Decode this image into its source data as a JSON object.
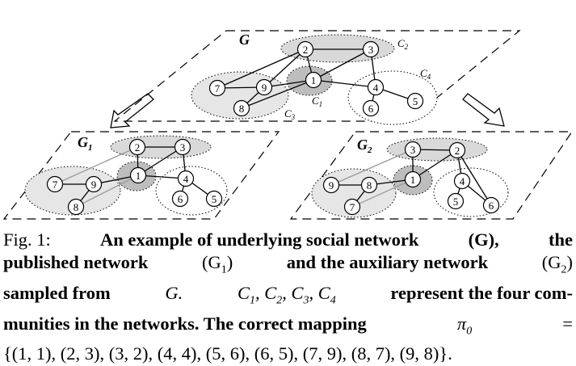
{
  "figure": {
    "graphs": {
      "main": {
        "label": "G",
        "sub": ""
      },
      "published": {
        "label": "G",
        "sub": "1"
      },
      "auxiliary": {
        "label": "G",
        "sub": "2"
      }
    },
    "communities": {
      "c1": {
        "label": "C",
        "sub": "1"
      },
      "c2": {
        "label": "C",
        "sub": "2"
      },
      "c3": {
        "label": "C",
        "sub": "3"
      },
      "c4": {
        "label": "C",
        "sub": "4"
      }
    },
    "node_labels": [
      "1",
      "2",
      "3",
      "4",
      "5",
      "6",
      "7",
      "8",
      "9"
    ],
    "edges_g": [
      [
        "2",
        "3"
      ],
      [
        "2",
        "1"
      ],
      [
        "3",
        "1"
      ],
      [
        "2",
        "7"
      ],
      [
        "7",
        "9"
      ],
      [
        "9",
        "8"
      ],
      [
        "9",
        "1"
      ],
      [
        "1",
        "4"
      ],
      [
        "4",
        "6"
      ],
      [
        "4",
        "5"
      ],
      [
        "3",
        "4"
      ],
      [
        "9",
        "2"
      ],
      [
        "8",
        "1"
      ]
    ],
    "edges_g1": [
      [
        "2",
        "3"
      ],
      [
        "2",
        "1"
      ],
      [
        "1",
        "3"
      ],
      [
        "7",
        "9"
      ],
      [
        "9",
        "8"
      ],
      [
        "9",
        "1"
      ],
      [
        "1",
        "4"
      ],
      [
        "4",
        "6"
      ],
      [
        "4",
        "5"
      ],
      [
        "3",
        "4"
      ],
      [
        "7",
        "2"
      ],
      [
        "8",
        "1"
      ]
    ],
    "edges_g2": [
      [
        "3",
        "2"
      ],
      [
        "3",
        "1"
      ],
      [
        "9",
        "8"
      ],
      [
        "8",
        "7"
      ],
      [
        "8",
        "1"
      ],
      [
        "1",
        "2"
      ],
      [
        "2",
        "4"
      ],
      [
        "4",
        "5"
      ],
      [
        "4",
        "6"
      ],
      [
        "2",
        "6"
      ],
      [
        "9",
        "3"
      ],
      [
        "7",
        "1"
      ]
    ]
  },
  "caption": {
    "line1": [
      "Fig. 1:",
      "An example of underlying social network",
      "(G),",
      "the"
    ],
    "line2": [
      "published network",
      "(G",
      "1",
      ")",
      "and the auxiliary network",
      "(G",
      "2",
      ")"
    ],
    "line3": [
      "sampled from",
      "G.",
      "C",
      "1",
      ", C",
      "2",
      ", C",
      "3",
      ", C",
      "4",
      "represent the four com-"
    ],
    "line4": [
      "munities in the networks. The correct mapping",
      "π",
      "0",
      "="
    ],
    "line5": "{(1, 1), (2, 3), (3, 2), (4, 4), (5, 6), (6, 5), (7, 9), (8, 7), (9, 8)}."
  },
  "colors": {
    "community_fill": "#d9d9d9",
    "node_fill": "#ffffff",
    "stroke": "#000000"
  }
}
